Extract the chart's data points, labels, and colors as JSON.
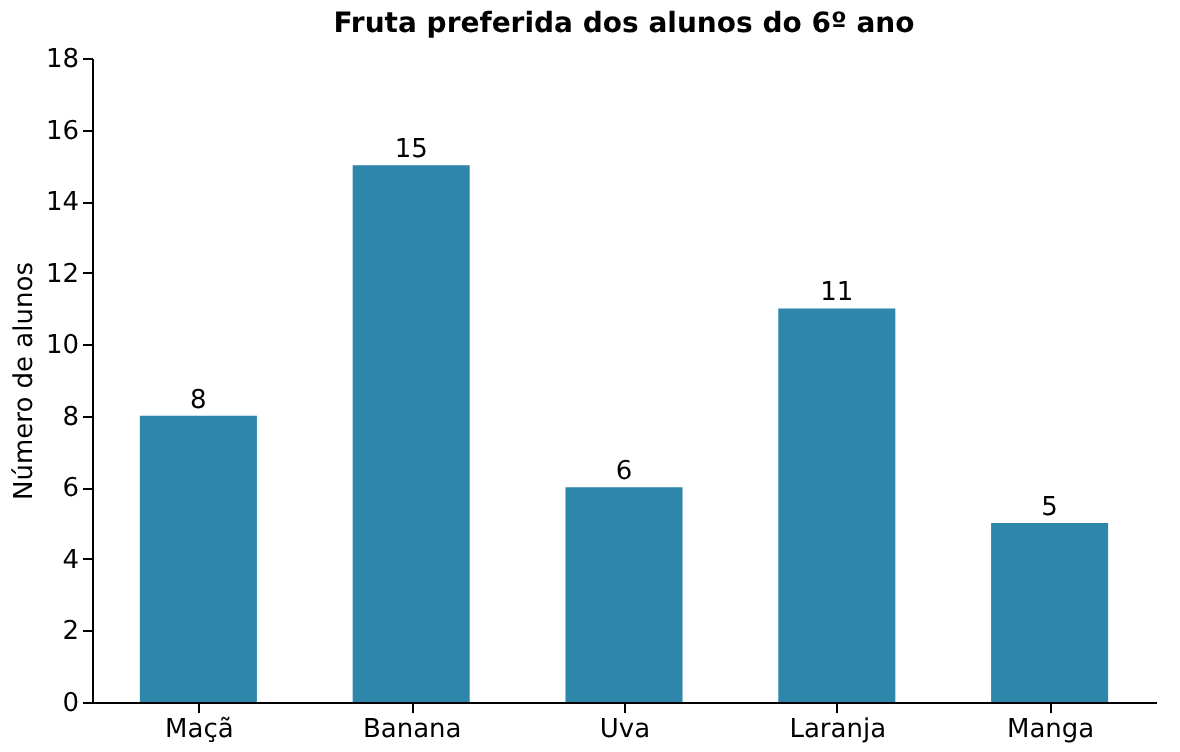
{
  "chart_data": {
    "type": "bar",
    "title": "Fruta preferida dos alunos do 6º ano",
    "ylabel": "Número de alunos",
    "categories": [
      "Maçã",
      "Banana",
      "Uva",
      "Laranja",
      "Manga"
    ],
    "values": [
      8,
      15,
      6,
      11,
      5
    ],
    "color": "#2e86ab",
    "ylim": [
      0,
      18
    ],
    "yticks": [
      0,
      2,
      4,
      6,
      8,
      10,
      12,
      14,
      16,
      18
    ],
    "grid": false,
    "data_labels": true
  }
}
